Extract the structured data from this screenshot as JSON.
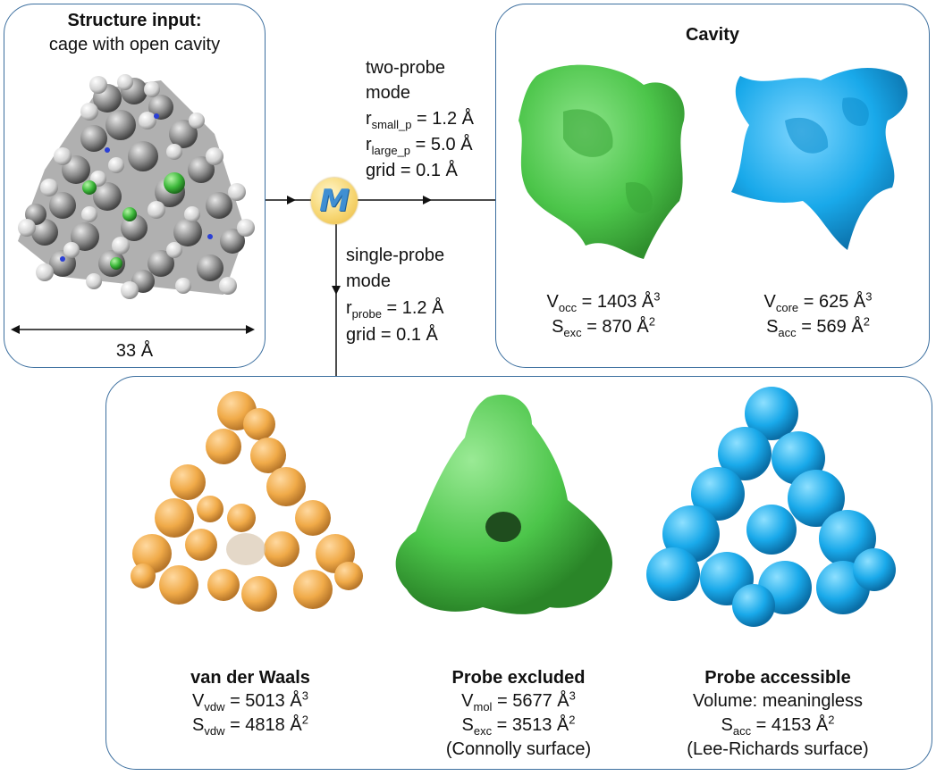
{
  "input_panel": {
    "title": "Structure input:",
    "subtitle": "cage with open cavity",
    "scale_label": "33 Å"
  },
  "logo": {
    "glyph": "M",
    "colors": {
      "fill": "#f7d774",
      "letter": "#3f8fd3"
    }
  },
  "two_probe": {
    "line1": "two-probe",
    "line2": "mode",
    "r_small": {
      "symbol": "r",
      "sub": "small_p",
      "value": " = 1.2 Å"
    },
    "r_large": {
      "symbol": "r",
      "sub": "large_p",
      "value": " = 5.0 Å"
    },
    "grid": "grid = 0.1 Å"
  },
  "single_probe": {
    "line1": "single-probe",
    "line2": "mode",
    "r_probe": {
      "symbol": "r",
      "sub": "probe",
      "value": " = 1.2 Å"
    },
    "grid": "grid = 0.1 Å"
  },
  "cavity_panel": {
    "title": "Cavity",
    "green": {
      "color": "#4cc54a",
      "v": {
        "symbol": "V",
        "sub": "occ",
        "value": " = 1403 Å",
        "sup": "3"
      },
      "s": {
        "symbol": "S",
        "sub": "exc",
        "value": " = 870 Å",
        "sup": "2"
      }
    },
    "blue": {
      "color": "#19a9ea",
      "v": {
        "symbol": "V",
        "sub": "core",
        "value": " = 625 Å",
        "sup": "3"
      },
      "s": {
        "symbol": "S",
        "sub": "acc",
        "value": " = 569 Å",
        "sup": "2"
      }
    }
  },
  "surfaces": {
    "vdw": {
      "color": "#f0aa48",
      "title": "van der Waals",
      "v": {
        "symbol": "V",
        "sub": "vdw",
        "value": " = 5013 Å",
        "sup": "3"
      },
      "s": {
        "symbol": "S",
        "sub": "vdw",
        "value": " = 4818 Å",
        "sup": "2"
      }
    },
    "excluded": {
      "color": "#4cc54a",
      "title": "Probe excluded",
      "v": {
        "symbol": "V",
        "sub": "mol",
        "value": " = 5677 Å",
        "sup": "3"
      },
      "s": {
        "symbol": "S",
        "sub": "exc",
        "value": " = 3513 Å",
        "sup": "2"
      },
      "note": "(Connolly surface)"
    },
    "accessible": {
      "color": "#19a9ea",
      "title": "Probe accessible",
      "v_text": "Volume: meaningless",
      "s": {
        "symbol": "S",
        "sub": "acc",
        "value": " = 4153 Å",
        "sup": "2"
      },
      "note": "(Lee-Richards surface)"
    }
  }
}
